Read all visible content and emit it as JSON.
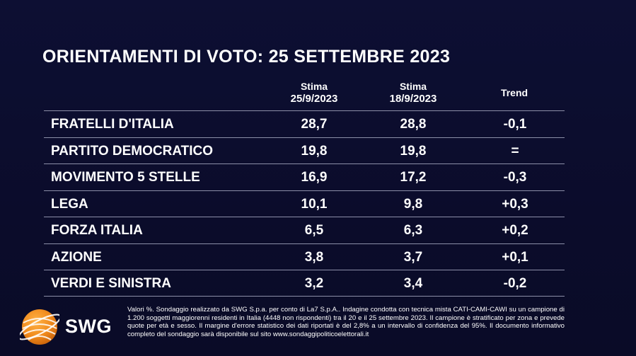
{
  "title": "ORIENTAMENTI DI VOTO: 25 SETTEMBRE 2023",
  "columns": {
    "col1_line1": "Stima",
    "col1_line2": "25/9/2023",
    "col2_line1": "Stima",
    "col2_line2": "18/9/2023",
    "trend": "Trend"
  },
  "rows": [
    {
      "party": "FRATELLI D'ITALIA",
      "stima_25_9": "28,7",
      "stima_18_9": "28,8",
      "trend": "-0,1"
    },
    {
      "party": "PARTITO DEMOCRATICO",
      "stima_25_9": "19,8",
      "stima_18_9": "19,8",
      "trend": "="
    },
    {
      "party": "MOVIMENTO 5 STELLE",
      "stima_25_9": "16,9",
      "stima_18_9": "17,2",
      "trend": "-0,3"
    },
    {
      "party": "LEGA",
      "stima_25_9": "10,1",
      "stima_18_9": "9,8",
      "trend": "+0,3"
    },
    {
      "party": "FORZA ITALIA",
      "stima_25_9": "6,5",
      "stima_18_9": "6,3",
      "trend": "+0,2"
    },
    {
      "party": "AZIONE",
      "stima_25_9": "3,8",
      "stima_18_9": "3,7",
      "trend": "+0,1"
    },
    {
      "party": "VERDI E SINISTRA",
      "stima_25_9": "3,2",
      "stima_18_9": "3,4",
      "trend": "-0,2"
    }
  ],
  "logo": {
    "text": "SWG",
    "icon": "swg-globe-icon",
    "color": "#f08a1c"
  },
  "footnote": "Valori %. Sondaggio realizzato da SWG S.p.a. per conto di La7 S.p.A.. Indagine condotta con tecnica mista CATI-CAMI-CAWI su un campione di 1.200 soggetti maggiorenni residenti in Italia (4448 non rispondenti) tra il 20 e il 25 settembre 2023. Il campione è stratificato per zona e prevede quote per età e sesso. Il margine d'errore statistico dei dati riportati è del 2,8% a un intervallo di confidenza del 95%. Il documento informativo completo del sondaggio sarà disponibile sul sito www.sondaggipoliticoelettorali.it",
  "colors": {
    "background": "#0b0c2e",
    "text": "#ffffff",
    "rule": "#8c8fa8"
  }
}
